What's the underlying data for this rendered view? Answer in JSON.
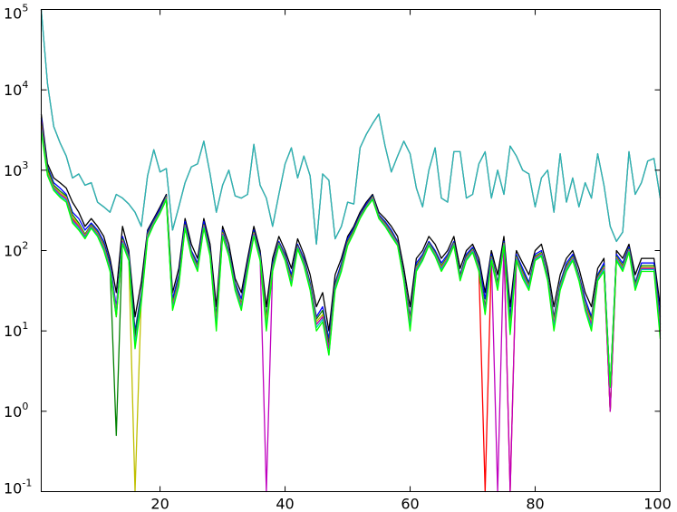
{
  "chart_data": {
    "type": "line",
    "title": "",
    "xlabel": "",
    "ylabel": "",
    "xlim": [
      1,
      100
    ],
    "ylim": [
      0.1,
      100000
    ],
    "y_scale": "log",
    "grid": false,
    "legend": "none",
    "x_ticks": [
      {
        "value": 20,
        "label": "20"
      },
      {
        "value": 40,
        "label": "40"
      },
      {
        "value": 60,
        "label": "60"
      },
      {
        "value": 80,
        "label": "80"
      },
      {
        "value": 100,
        "label": "100"
      }
    ],
    "y_ticks": [
      {
        "value": 0.1,
        "base": "10",
        "exp": "-1"
      },
      {
        "value": 1,
        "base": "10",
        "exp": "0"
      },
      {
        "value": 10,
        "base": "10",
        "exp": "1"
      },
      {
        "value": 100,
        "base": "10",
        "exp": "2"
      },
      {
        "value": 1000,
        "base": "10",
        "exp": "3"
      },
      {
        "value": 10000,
        "base": "10",
        "exp": "4"
      },
      {
        "value": 100000,
        "base": "10",
        "exp": "5"
      }
    ],
    "highlight_series": {
      "color": "#2ab5b5",
      "x": [
        1,
        2,
        3,
        4,
        5,
        6,
        7,
        8,
        9,
        10,
        11,
        12,
        13,
        14,
        15,
        16,
        17,
        18,
        19,
        20,
        21,
        22,
        23,
        24,
        25,
        26,
        27,
        28,
        29,
        30,
        31,
        32,
        33,
        34,
        35,
        36,
        37,
        38,
        39,
        40,
        41,
        42,
        43,
        44,
        45,
        46,
        47,
        48,
        49,
        50,
        51,
        52,
        53,
        54,
        55,
        56,
        57,
        58,
        59,
        60,
        61,
        62,
        63,
        64,
        65,
        66,
        67,
        68,
        69,
        70,
        71,
        72,
        73,
        74,
        75,
        76,
        77,
        78,
        79,
        80,
        81,
        82,
        83,
        84,
        85,
        86,
        87,
        88,
        89,
        90,
        91,
        92,
        93,
        94,
        95,
        96,
        97,
        98,
        99,
        100
      ],
      "y": [
        100000,
        12000,
        3500,
        2200,
        1500,
        800,
        900,
        650,
        700,
        400,
        350,
        300,
        500,
        450,
        380,
        300,
        200,
        850,
        1800,
        950,
        1050,
        180,
        350,
        700,
        1100,
        1200,
        2300,
        900,
        300,
        650,
        1000,
        480,
        450,
        500,
        2100,
        650,
        450,
        200,
        500,
        1200,
        1900,
        800,
        1500,
        850,
        120,
        900,
        750,
        140,
        200,
        400,
        380,
        1900,
        2800,
        3800,
        5000,
        2000,
        950,
        1500,
        2300,
        1600,
        600,
        350,
        1000,
        1900,
        450,
        400,
        1700,
        1700,
        450,
        500,
        1200,
        1700,
        450,
        1000,
        500,
        2000,
        1500,
        1000,
        900,
        350,
        800,
        1000,
        300,
        1600,
        400,
        800,
        350,
        700,
        450,
        1600,
        650,
        200,
        130,
        170,
        1700,
        500,
        700,
        1300,
        1400,
        450
      ]
    },
    "series_colors": [
      "#000000",
      "#0000ff",
      "#ff0000",
      "#008000",
      "#bfbf00",
      "#bf00bf",
      "#00bfbf",
      "#00ff00"
    ],
    "series": [
      {
        "color": "#000000",
        "values": [
          5000,
          1200,
          800,
          700,
          600,
          400,
          300,
          200,
          250,
          200,
          150,
          80,
          30,
          200,
          100,
          15,
          40,
          180,
          250,
          350,
          500,
          30,
          60,
          250,
          120,
          80,
          250,
          120,
          20,
          200,
          120,
          45,
          30,
          80,
          200,
          100,
          20,
          80,
          150,
          100,
          60,
          140,
          90,
          50,
          20,
          30,
          10,
          50,
          80,
          150,
          200,
          300,
          400,
          500,
          300,
          250,
          200,
          150,
          60,
          20,
          80,
          100,
          150,
          120,
          80,
          100,
          150,
          60,
          100,
          120,
          80,
          30,
          100,
          50,
          150,
          20,
          100,
          70,
          50,
          100,
          120,
          60,
          20,
          50,
          80,
          100,
          60,
          30,
          20,
          60,
          80,
          1,
          100,
          80,
          120,
          50,
          80,
          80,
          80,
          20
        ]
      },
      {
        "color": "#0000ff",
        "values": [
          4500,
          1100,
          700,
          600,
          500,
          300,
          250,
          180,
          220,
          180,
          130,
          70,
          20,
          150,
          90,
          10,
          30,
          170,
          240,
          330,
          480,
          25,
          50,
          230,
          100,
          70,
          230,
          100,
          15,
          180,
          100,
          40,
          25,
          70,
          180,
          90,
          15,
          70,
          130,
          90,
          50,
          120,
          80,
          40,
          15,
          20,
          8,
          40,
          70,
          140,
          190,
          280,
          380,
          480,
          280,
          230,
          180,
          130,
          50,
          15,
          70,
          90,
          130,
          100,
          70,
          90,
          130,
          50,
          90,
          110,
          70,
          25,
          90,
          40,
          130,
          15,
          90,
          60,
          40,
          90,
          100,
          50,
          15,
          40,
          70,
          90,
          50,
          25,
          15,
          50,
          70,
          2,
          90,
          70,
          110,
          40,
          70,
          70,
          70,
          15
        ]
      },
      {
        "color": "#ff0000",
        "values": [
          4000,
          1000,
          600,
          500,
          450,
          250,
          200,
          150,
          200,
          160,
          110,
          60,
          15,
          130,
          80,
          8,
          25,
          150,
          220,
          300,
          450,
          20,
          40,
          200,
          90,
          60,
          200,
          90,
          12,
          160,
          90,
          35,
          20,
          60,
          160,
          80,
          12,
          60,
          120,
          80,
          40,
          110,
          70,
          35,
          12,
          15,
          6,
          35,
          60,
          120,
          170,
          260,
          350,
          450,
          260,
          210,
          160,
          120,
          45,
          12,
          60,
          80,
          120,
          90,
          60,
          80,
          120,
          45,
          80,
          100,
          60,
          0.1,
          80,
          35,
          120,
          0.1,
          80,
          50,
          35,
          80,
          90,
          45,
          12,
          35,
          60,
          80,
          45,
          20,
          12,
          45,
          60,
          1,
          80,
          60,
          100,
          35,
          60,
          60,
          60,
          10
        ]
      },
      {
        "color": "#008000",
        "values": [
          3800,
          1050,
          650,
          550,
          480,
          280,
          220,
          160,
          210,
          170,
          120,
          65,
          0.5,
          140,
          85,
          9,
          28,
          160,
          230,
          310,
          470,
          22,
          45,
          210,
          95,
          65,
          210,
          95,
          14,
          170,
          95,
          38,
          22,
          65,
          170,
          85,
          14,
          65,
          125,
          85,
          45,
          115,
          75,
          38,
          14,
          18,
          7,
          38,
          65,
          130,
          180,
          270,
          360,
          470,
          270,
          220,
          170,
          125,
          48,
          14,
          65,
          85,
          125,
          95,
          65,
          85,
          125,
          48,
          85,
          105,
          65,
          20,
          85,
          38,
          125,
          12,
          85,
          55,
          38,
          85,
          95,
          48,
          14,
          38,
          65,
          85,
          48,
          22,
          14,
          48,
          65,
          2,
          85,
          65,
          105,
          38,
          65,
          65,
          65,
          12
        ]
      },
      {
        "color": "#bfbf00",
        "values": [
          3600,
          950,
          620,
          520,
          460,
          260,
          210,
          155,
          205,
          165,
          115,
          62,
          18,
          135,
          82,
          0.1,
          26,
          155,
          225,
          305,
          460,
          21,
          42,
          205,
          92,
          62,
          205,
          92,
          13,
          165,
          92,
          36,
          21,
          62,
          165,
          82,
          13,
          62,
          122,
          82,
          42,
          112,
          72,
          36,
          13,
          16,
          6,
          36,
          62,
          125,
          175,
          265,
          355,
          460,
          265,
          215,
          165,
          122,
          46,
          13,
          62,
          82,
          122,
          92,
          62,
          82,
          122,
          46,
          82,
          102,
          62,
          18,
          82,
          36,
          122,
          11,
          82,
          52,
          36,
          82,
          92,
          46,
          13,
          36,
          62,
          82,
          46,
          21,
          13,
          46,
          62,
          1,
          82,
          62,
          102,
          36,
          62,
          62,
          62,
          11
        ]
      },
      {
        "color": "#bf00bf",
        "values": [
          3400,
          900,
          600,
          500,
          440,
          240,
          200,
          150,
          200,
          160,
          110,
          60,
          17,
          130,
          80,
          7,
          25,
          150,
          220,
          300,
          450,
          20,
          40,
          200,
          90,
          60,
          200,
          90,
          12,
          160,
          90,
          35,
          20,
          60,
          160,
          80,
          0.1,
          60,
          120,
          80,
          40,
          110,
          70,
          35,
          12,
          15,
          6,
          35,
          60,
          120,
          170,
          260,
          350,
          450,
          260,
          210,
          160,
          120,
          45,
          12,
          60,
          80,
          120,
          90,
          60,
          80,
          120,
          45,
          80,
          100,
          60,
          18,
          80,
          0.1,
          120,
          0.1,
          80,
          50,
          35,
          80,
          90,
          45,
          12,
          35,
          60,
          80,
          45,
          20,
          12,
          45,
          60,
          1,
          80,
          60,
          100,
          35,
          60,
          60,
          60,
          10
        ]
      },
      {
        "color": "#00bfbf",
        "values": [
          3200,
          880,
          580,
          480,
          420,
          230,
          190,
          145,
          195,
          155,
          105,
          58,
          16,
          125,
          78,
          7,
          24,
          145,
          215,
          295,
          440,
          19,
          38,
          195,
          88,
          58,
          195,
          88,
          11,
          155,
          88,
          34,
          19,
          58,
          155,
          78,
          11,
          58,
          118,
          78,
          38,
          108,
          68,
          34,
          11,
          14,
          5,
          34,
          58,
          118,
          168,
          255,
          345,
          440,
          255,
          205,
          155,
          118,
          44,
          11,
          58,
          78,
          118,
          88,
          58,
          78,
          118,
          44,
          78,
          98,
          58,
          17,
          78,
          34,
          118,
          10,
          78,
          48,
          34,
          78,
          88,
          44,
          11,
          34,
          58,
          78,
          44,
          19,
          11,
          44,
          58,
          2,
          78,
          58,
          98,
          34,
          58,
          58,
          58,
          9
        ]
      },
      {
        "color": "#00ff00",
        "values": [
          3000,
          860,
          560,
          460,
          400,
          220,
          180,
          140,
          190,
          150,
          100,
          55,
          15,
          120,
          75,
          6,
          22,
          140,
          210,
          290,
          430,
          18,
          36,
          190,
          85,
          55,
          190,
          85,
          10,
          150,
          85,
          32,
          18,
          55,
          150,
          75,
          10,
          55,
          115,
          75,
          36,
          105,
          65,
          32,
          10,
          13,
          5,
          32,
          55,
          115,
          165,
          250,
          340,
          430,
          250,
          200,
          150,
          115,
          42,
          10,
          55,
          75,
          115,
          85,
          55,
          75,
          115,
          42,
          75,
          95,
          55,
          16,
          75,
          32,
          115,
          9,
          75,
          45,
          32,
          75,
          85,
          42,
          10,
          32,
          55,
          75,
          42,
          18,
          10,
          42,
          55,
          2,
          75,
          55,
          95,
          32,
          55,
          55,
          55,
          8
        ]
      }
    ]
  }
}
